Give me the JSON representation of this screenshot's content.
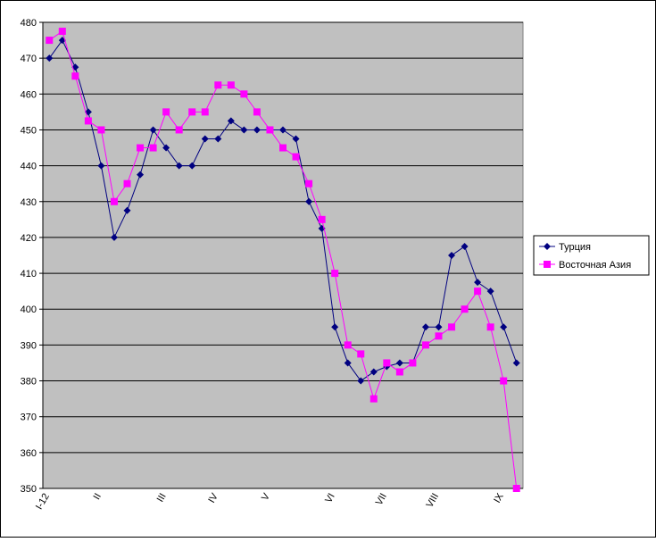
{
  "chart_data": {
    "type": "line",
    "categories": [
      "I-12",
      null,
      null,
      null,
      "II",
      null,
      null,
      null,
      null,
      "III",
      null,
      null,
      null,
      "IV",
      null,
      null,
      null,
      "V",
      null,
      null,
      null,
      null,
      "VI",
      null,
      null,
      null,
      "VII",
      null,
      null,
      null,
      "VIII",
      null,
      null,
      null,
      null,
      "IX",
      null
    ],
    "series": [
      {
        "name": "Турция",
        "color": "#000080",
        "marker": "diamond",
        "values": [
          470,
          475,
          467.5,
          455,
          440,
          420,
          427.5,
          437.5,
          450,
          445,
          440,
          440,
          447.5,
          447.5,
          452.5,
          450,
          450,
          450,
          450,
          447.5,
          430,
          422.5,
          395,
          385,
          380,
          382.5,
          384,
          385,
          385,
          395,
          395,
          415,
          417.5,
          407.5,
          405,
          395,
          385
        ]
      },
      {
        "name": "Восточная Азия",
        "color": "#ff00ff",
        "marker": "square",
        "values": [
          475,
          477.5,
          465,
          452.5,
          450,
          430,
          435,
          445,
          445,
          455,
          450,
          455,
          455,
          462.5,
          462.5,
          460,
          455,
          450,
          445,
          442.5,
          435,
          425,
          410,
          390,
          387.5,
          375,
          385,
          382.5,
          385,
          390,
          392.5,
          395,
          400,
          405,
          395,
          380,
          350
        ]
      }
    ],
    "ylim": [
      350,
      480
    ],
    "yticks": [
      350,
      360,
      370,
      380,
      390,
      400,
      410,
      420,
      430,
      440,
      450,
      460,
      470,
      480
    ],
    "grid": true,
    "plot_background": "#c0c0c0",
    "legend": "right"
  }
}
